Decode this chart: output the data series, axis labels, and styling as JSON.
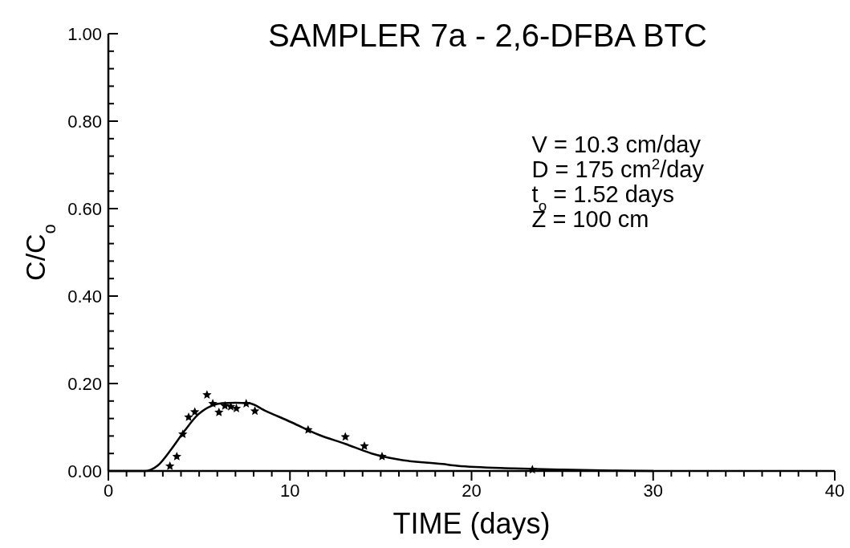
{
  "chart_data": {
    "type": "scatter",
    "title": "SAMPLER 7a - 2,6-DFBA BTC",
    "xlabel": "TIME (days)",
    "ylabel": "C/C$_{o}$",
    "annotations": [
      "V = 10.3 cm/day",
      "D = 175 cm$^{2}$/day",
      "t$_{o}$ = 1.52 days",
      "Z = 100 cm"
    ],
    "xlim": [
      0,
      40
    ],
    "ylim": [
      0,
      1
    ],
    "xticks": [
      0,
      {
        "value": 1,
        "label": null
      },
      {
        "value": 2,
        "label": null
      },
      {
        "value": 3,
        "label": null
      },
      {
        "value": 4,
        "label": null
      },
      {
        "value": 5,
        "label": null
      },
      {
        "value": 6,
        "label": null
      },
      {
        "value": 7,
        "label": null
      },
      {
        "value": 8,
        "label": null
      },
      {
        "value": 9,
        "label": null
      },
      10,
      {
        "value": 11,
        "label": null
      },
      {
        "value": 12,
        "label": null
      },
      {
        "value": 13,
        "label": null
      },
      {
        "value": 14,
        "label": null
      },
      {
        "value": 15,
        "label": null
      },
      {
        "value": 16,
        "label": null
      },
      {
        "value": 17,
        "label": null
      },
      {
        "value": 18,
        "label": null
      },
      {
        "value": 19,
        "label": null
      },
      20,
      {
        "value": 21,
        "label": null
      },
      {
        "value": 22,
        "label": null
      },
      {
        "value": 23,
        "label": null
      },
      {
        "value": 24,
        "label": null
      },
      {
        "value": 25,
        "label": null
      },
      {
        "value": 26,
        "label": null
      },
      {
        "value": 27,
        "label": null
      },
      {
        "value": 28,
        "label": null
      },
      {
        "value": 29,
        "label": null
      },
      30,
      {
        "value": 31,
        "label": null
      },
      {
        "value": 32,
        "label": null
      },
      {
        "value": 33,
        "label": null
      },
      {
        "value": 34,
        "label": null
      },
      {
        "value": 35,
        "label": null
      },
      {
        "value": 36,
        "label": null
      },
      {
        "value": 37,
        "label": null
      },
      {
        "value": 38,
        "label": null
      },
      {
        "value": 39,
        "label": null
      },
      40
    ],
    "yticks": [
      {
        "value": 0,
        "label": "0.00"
      },
      {
        "value": 0.04,
        "label": null
      },
      {
        "value": 0.08,
        "label": null
      },
      {
        "value": 0.12,
        "label": null
      },
      {
        "value": 0.16,
        "label": null
      },
      {
        "value": 0.2,
        "label": "0.20"
      },
      {
        "value": 0.24,
        "label": null
      },
      {
        "value": 0.28,
        "label": null
      },
      {
        "value": 0.32,
        "label": null
      },
      {
        "value": 0.36,
        "label": null
      },
      {
        "value": 0.4,
        "label": "0.40"
      },
      {
        "value": 0.44,
        "label": null
      },
      {
        "value": 0.48,
        "label": null
      },
      {
        "value": 0.52,
        "label": null
      },
      {
        "value": 0.56,
        "label": null
      },
      {
        "value": 0.6,
        "label": "0.60"
      },
      {
        "value": 0.64,
        "label": null
      },
      {
        "value": 0.68,
        "label": null
      },
      {
        "value": 0.72,
        "label": null
      },
      {
        "value": 0.76,
        "label": null
      },
      {
        "value": 0.8,
        "label": "0.80"
      },
      {
        "value": 0.84,
        "label": null
      },
      {
        "value": 0.88,
        "label": null
      },
      {
        "value": 0.92,
        "label": null
      },
      {
        "value": 0.96,
        "label": null
      },
      {
        "value": 1,
        "label": "1.00"
      }
    ],
    "grid": false,
    "marker": "star",
    "series": [
      {
        "color": "#000000",
        "x": [
          3.39,
          3.77,
          4.1,
          4.42,
          4.76,
          5.43,
          5.75,
          6.09,
          6.42,
          6.74,
          7.05,
          7.59,
          8.07,
          11.0,
          13.05,
          14.1,
          15.07,
          23.35
        ],
        "values": [
          0.011,
          0.033,
          0.084,
          0.123,
          0.135,
          0.174,
          0.154,
          0.134,
          0.149,
          0.147,
          0.143,
          0.154,
          0.137,
          0.094,
          0.078,
          0.057,
          0.033,
          0.003
        ]
      },
      {
        "type": "line",
        "color": "#000000",
        "marker": "none",
        "line_style": "solid",
        "x": [
          0,
          2.0,
          2.73,
          3.47,
          4.2,
          4.94,
          5.68,
          6.27,
          7.0,
          7.74,
          8.63,
          10.1,
          11.57,
          13.05,
          14.5,
          16.0,
          18.4,
          19.2,
          22.3,
          25,
          28,
          30
        ],
        "values": [
          0,
          0,
          0.013,
          0.05,
          0.092,
          0.129,
          0.149,
          0.155,
          0.156,
          0.155,
          0.138,
          0.111,
          0.083,
          0.062,
          0.04,
          0.026,
          0.016,
          0.012,
          0.006,
          0.003,
          0.001,
          0
        ]
      }
    ]
  }
}
